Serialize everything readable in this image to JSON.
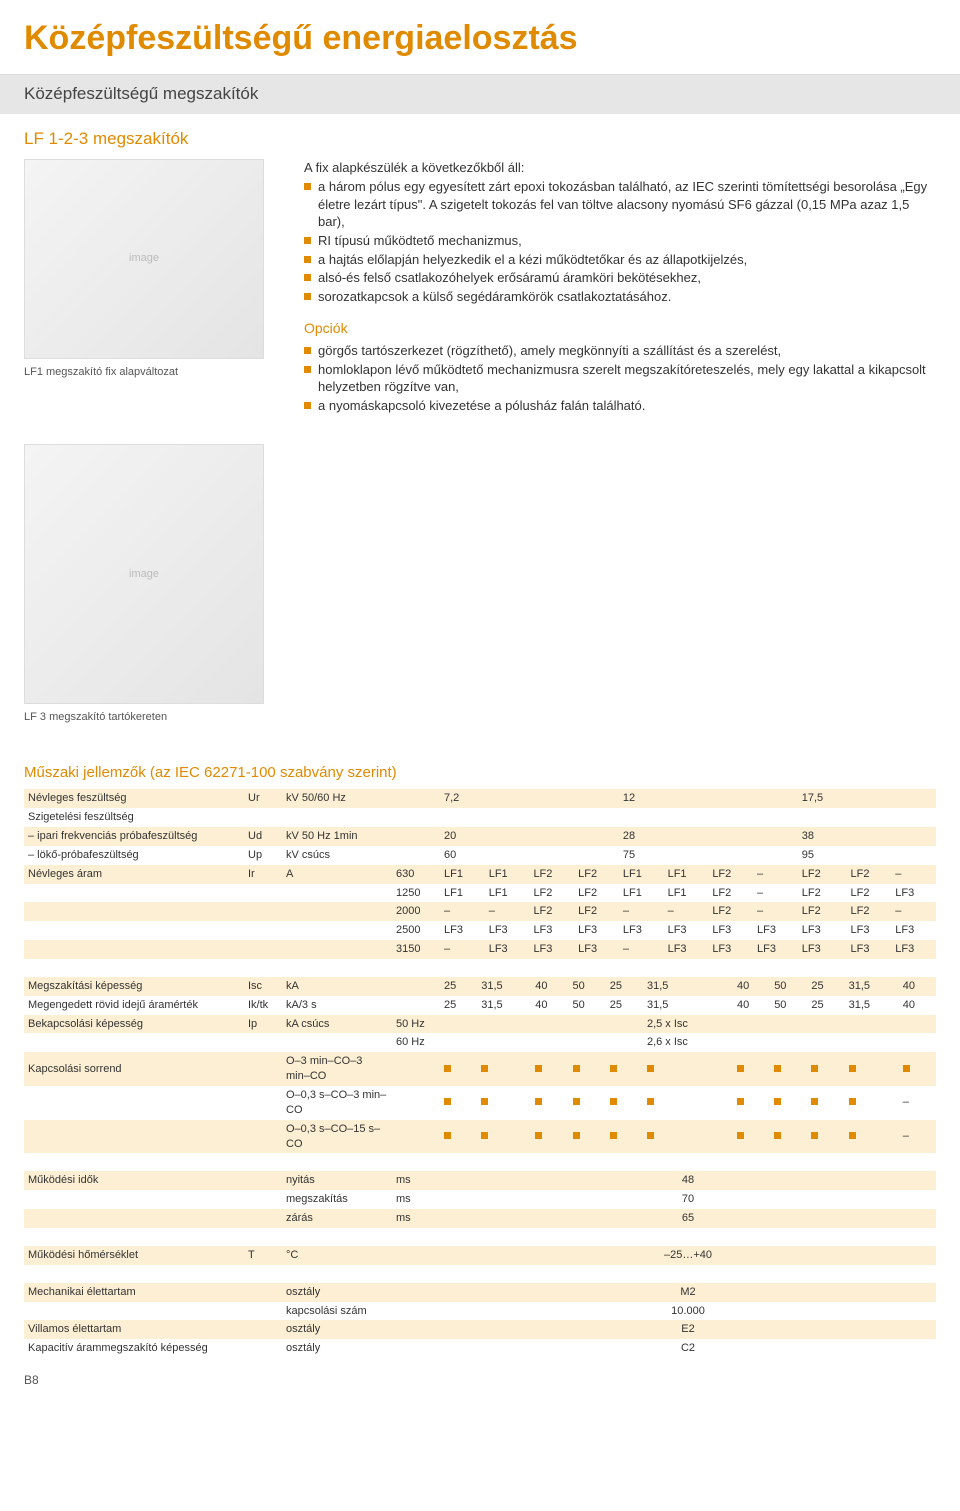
{
  "page_title": "Középfeszültségű energiaelosztás",
  "section_bar": "Középfeszültségű megszakítók",
  "sub_title": "LF 1-2-3 megszakítók",
  "intro_lead": "A fix alapkészülék a következőkből áll:",
  "intro_bullets": [
    "a három pólus egy egyesített zárt epoxi tokozásban található, az IEC szerinti tömítettségi besorolása „Egy életre lezárt típus\". A szigetelt tokozás fel van töltve alacsony nyomású SF6 gázzal (0,15 MPa azaz 1,5 bar),",
    "RI típusú működtető mechanizmus,",
    "a hajtás előlapján helyezkedik el a kézi működtetőkar és az állapotkijelzés,",
    "alsó-és felső csatlakozóhelyek erősáramú áramköri bekötésekhez,",
    "sorozatkapcsok a külső segédáramkörök csatlakoztatásához."
  ],
  "opciok_title": "Opciók",
  "opciok_bullets": [
    "görgős tartószerkezet (rögzíthető), amely megkönnyíti a szállítást és a szerelést,",
    "homloklapon lévő működtető mechanizmusra szerelt megszakítóreteszelés, mely egy lakattal a kikapcsolt helyzetben rögzítve van,",
    "a nyomáskapcsoló kivezetése a pólusház falán található."
  ],
  "img1_caption": "LF1 megszakító fix alapváltozat",
  "img2_caption": "LF 3 megszakító tartókereten",
  "tech_title": "Műszaki jellemzők (az IEC 62271-100 szabvány szerint)",
  "page_num": "B8",
  "colors": {
    "accent": "#e08a00",
    "band": "#fdefd3",
    "text": "#333333",
    "bar_bg": "#e6e6e6"
  },
  "table1": {
    "rows": [
      {
        "band": "odd",
        "label": "Névleges feszültség",
        "sym": "Ur",
        "unit": "kV 50/60 Hz",
        "pre": "",
        "v": [
          "7,2",
          "",
          "",
          "",
          "12",
          "",
          "",
          "",
          "17,5",
          "",
          ""
        ]
      },
      {
        "band": "even",
        "label": "Szigetelési feszültség",
        "sym": "",
        "unit": "",
        "pre": "",
        "v": [
          "",
          "",
          "",
          "",
          "",
          "",
          "",
          "",
          "",
          "",
          ""
        ]
      },
      {
        "band": "odd",
        "label": "– ipari frekvenciás próbafeszültség",
        "sym": "Ud",
        "unit": "kV 50 Hz 1min",
        "pre": "",
        "v": [
          "20",
          "",
          "",
          "",
          "28",
          "",
          "",
          "",
          "38",
          "",
          ""
        ]
      },
      {
        "band": "even",
        "label": "– lökő-próbafeszültség",
        "sym": "Up",
        "unit": "kV csúcs",
        "pre": "",
        "v": [
          "60",
          "",
          "",
          "",
          "75",
          "",
          "",
          "",
          "95",
          "",
          ""
        ]
      },
      {
        "band": "odd",
        "label": "Névleges áram",
        "sym": "Ir",
        "unit": "A",
        "pre": "630",
        "v": [
          "LF1",
          "LF1",
          "LF2",
          "LF2",
          "LF1",
          "LF1",
          "LF2",
          "–",
          "LF2",
          "LF2",
          "–"
        ]
      },
      {
        "band": "even",
        "label": "",
        "sym": "",
        "unit": "",
        "pre": "1250",
        "v": [
          "LF1",
          "LF1",
          "LF2",
          "LF2",
          "LF1",
          "LF1",
          "LF2",
          "–",
          "LF2",
          "LF2",
          "LF3"
        ]
      },
      {
        "band": "odd",
        "label": "",
        "sym": "",
        "unit": "",
        "pre": "2000",
        "v": [
          "–",
          "–",
          "LF2",
          "LF2",
          "–",
          "–",
          "LF2",
          "–",
          "LF2",
          "LF2",
          "–"
        ]
      },
      {
        "band": "even",
        "label": "",
        "sym": "",
        "unit": "",
        "pre": "2500",
        "v": [
          "LF3",
          "LF3",
          "LF3",
          "LF3",
          "LF3",
          "LF3",
          "LF3",
          "LF3",
          "LF3",
          "LF3",
          "LF3"
        ]
      },
      {
        "band": "odd",
        "label": "",
        "sym": "",
        "unit": "",
        "pre": "3150",
        "v": [
          "–",
          "LF3",
          "LF3",
          "LF3",
          "–",
          "LF3",
          "LF3",
          "LF3",
          "LF3",
          "LF3",
          "LF3"
        ]
      }
    ]
  },
  "table2": {
    "rows": [
      {
        "band": "odd",
        "label": "Megszakítási képesség",
        "sym": "Isc",
        "unit": "kA",
        "pre": "",
        "v": [
          "25",
          "31,5",
          "40",
          "50",
          "25",
          "31,5",
          "40",
          "50",
          "25",
          "31,5",
          "40"
        ]
      },
      {
        "band": "even",
        "label": "Megengedett rövid idejű áramérték",
        "sym": "Ik/tk",
        "unit": "kA/3 s",
        "pre": "",
        "v": [
          "25",
          "31,5",
          "40",
          "50",
          "25",
          "31,5",
          "40",
          "50",
          "25",
          "31,5",
          "40"
        ]
      },
      {
        "band": "odd",
        "label": "Bekapcsolási képesség",
        "sym": "Ip",
        "unit": "kA csúcs",
        "pre": "50 Hz",
        "v": [
          "",
          "",
          "",
          "",
          "",
          "2,5 x Isc",
          "",
          "",
          "",
          "",
          ""
        ]
      },
      {
        "band": "even",
        "label": "",
        "sym": "",
        "unit": "",
        "pre": "60 Hz",
        "v": [
          "",
          "",
          "",
          "",
          "",
          "2,6 x Isc",
          "",
          "",
          "",
          "",
          ""
        ]
      },
      {
        "band": "odd",
        "label": "Kapcsolási sorrend",
        "sym": "",
        "unit": "O–3 min–CO–3 min–CO",
        "pre": "",
        "v": [
          "■",
          "■",
          "■",
          "■",
          "■",
          "■",
          "■",
          "■",
          "■",
          "■",
          "■"
        ]
      },
      {
        "band": "even",
        "label": "",
        "sym": "",
        "unit": "O–0,3 s–CO–3 min–CO",
        "pre": "",
        "v": [
          "■",
          "■",
          "■",
          "■",
          "■",
          "■",
          "■",
          "■",
          "■",
          "■",
          "–"
        ]
      },
      {
        "band": "odd",
        "label": "",
        "sym": "",
        "unit": "O–0,3 s–CO–15 s–CO",
        "pre": "",
        "v": [
          "■",
          "■",
          "■",
          "■",
          "■",
          "■",
          "■",
          "■",
          "■",
          "■",
          "–"
        ]
      }
    ]
  },
  "table3": {
    "rows": [
      {
        "band": "odd",
        "label": "Működési idők",
        "sym": "",
        "unit": "nyitás",
        "pre": "ms",
        "center": "48"
      },
      {
        "band": "even",
        "label": "",
        "sym": "",
        "unit": "megszakítás",
        "pre": "ms",
        "center": "70"
      },
      {
        "band": "odd",
        "label": "",
        "sym": "",
        "unit": "zárás",
        "pre": "ms",
        "center": "65"
      }
    ]
  },
  "table4": {
    "rows": [
      {
        "band": "odd",
        "label": "Működési hőmérséklet",
        "sym": "T",
        "unit": "°C",
        "pre": "",
        "center": "–25…+40"
      }
    ]
  },
  "table5": {
    "rows": [
      {
        "band": "odd",
        "label": "Mechanikai élettartam",
        "sym": "",
        "unit": "osztály",
        "pre": "",
        "center": "M2"
      },
      {
        "band": "even",
        "label": "",
        "sym": "",
        "unit": "kapcsolási szám",
        "pre": "",
        "center": "10.000"
      },
      {
        "band": "odd",
        "label": "Villamos élettartam",
        "sym": "",
        "unit": "osztály",
        "pre": "",
        "center": "E2"
      },
      {
        "band": "even",
        "label": "Kapacitív árammegszakító képesség",
        "sym": "",
        "unit": "osztály",
        "pre": "",
        "center": "C2"
      }
    ]
  }
}
